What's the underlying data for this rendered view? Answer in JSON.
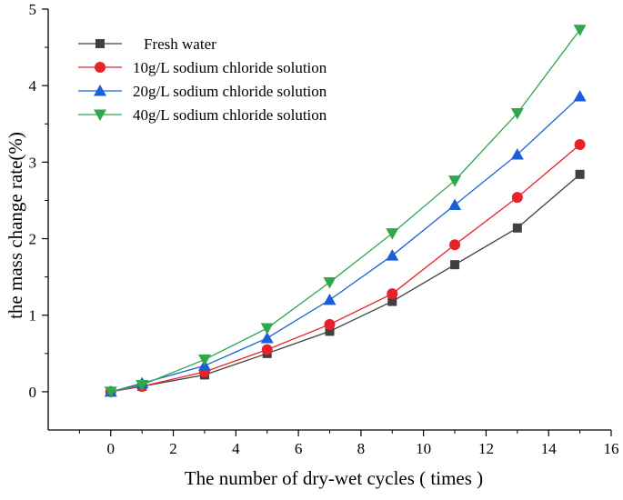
{
  "chart_data": {
    "type": "line",
    "title": "",
    "xlabel": "The number of dry-wet cycles ( times )",
    "ylabel": "the mass change rate(%)",
    "xlim": [
      -2,
      16
    ],
    "ylim": [
      -0.5,
      5
    ],
    "xticks": [
      0,
      2,
      4,
      6,
      8,
      10,
      12,
      14,
      16
    ],
    "yticks": [
      0,
      1,
      2,
      3,
      4,
      5
    ],
    "grid": false,
    "legend_position": "top-left",
    "series": [
      {
        "name": "Fresh water",
        "color": "#404040",
        "marker": "square",
        "x": [
          0,
          1,
          3,
          5,
          7,
          9,
          11,
          13,
          15
        ],
        "y": [
          0,
          0.07,
          0.22,
          0.5,
          0.79,
          1.18,
          1.66,
          2.14,
          2.84
        ]
      },
      {
        "name": "10g/L sodium chloride solution",
        "color": "#e8222b",
        "marker": "circle",
        "x": [
          0,
          1,
          3,
          5,
          7,
          9,
          11,
          13,
          15
        ],
        "y": [
          0,
          0.07,
          0.26,
          0.55,
          0.88,
          1.28,
          1.92,
          2.54,
          3.23
        ]
      },
      {
        "name": "20g/L sodium chloride solution",
        "color": "#1a5fd6",
        "marker": "triangle-up",
        "x": [
          0,
          1,
          3,
          5,
          7,
          9,
          11,
          13,
          15
        ],
        "y": [
          0,
          0.11,
          0.34,
          0.7,
          1.2,
          1.78,
          2.44,
          3.1,
          3.86
        ]
      },
      {
        "name": "40g/L sodium chloride solution",
        "color": "#2ea84a",
        "marker": "triangle-down",
        "x": [
          0,
          1,
          3,
          5,
          7,
          9,
          11,
          13,
          15
        ],
        "y": [
          0,
          0.09,
          0.42,
          0.83,
          1.43,
          2.07,
          2.76,
          3.64,
          4.73
        ]
      }
    ]
  }
}
